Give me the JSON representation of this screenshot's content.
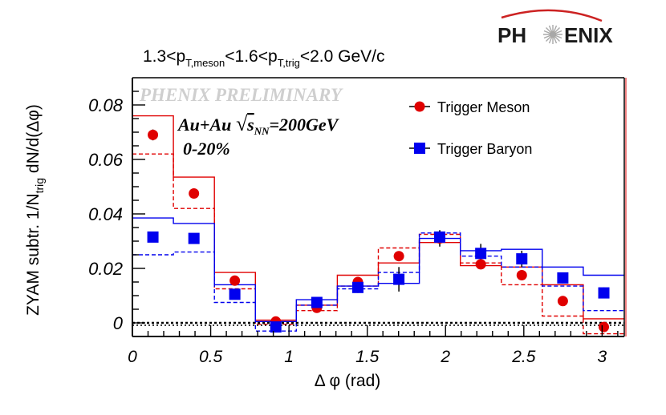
{
  "logo": {
    "text_left": "PH",
    "text_right": "ENIX"
  },
  "chart_data": {
    "type": "scatter",
    "title": "1.3<p_{T,meson}<1.6<p_{T,trig}<2.0 GeV/c",
    "title_parts": [
      "1.3<p",
      "T,meson",
      "<1.6<p",
      "T,trig",
      "<2.0 GeV/c"
    ],
    "xlabel": "Δ φ (rad)",
    "ylabel": "ZYAM subtr. 1/N_{trig} dN/d(Δφ)",
    "ylabel_parts": [
      "ZYAM subtr. 1/N",
      "trig",
      " dN/d(Δφ)"
    ],
    "xlim": [
      0,
      3.1416
    ],
    "ylim": [
      -0.005,
      0.09
    ],
    "xticks": [
      0,
      0.5,
      1,
      1.5,
      2,
      2.5,
      3
    ],
    "xtick_labels": [
      "0",
      "0.5",
      "1",
      "1.5",
      "2",
      "2.5",
      "3"
    ],
    "yticks": [
      0,
      0.02,
      0.04,
      0.06,
      0.08
    ],
    "ytick_labels": [
      "0",
      "0.02",
      "0.04",
      "0.06",
      "0.08"
    ],
    "bin_edges": [
      0,
      0.2618,
      0.5236,
      0.7854,
      1.0472,
      1.309,
      1.5708,
      1.8326,
      2.0944,
      2.3562,
      2.618,
      2.8798,
      3.1416
    ],
    "annotations": {
      "watermark": "PHENIX PRELIMINARY",
      "system_prefix": "Au+Au ",
      "sqrt_symbol": "√",
      "s_label": "s",
      "s_sub": "NN",
      "system_suffix": "=200GeV",
      "centrality": "0-20%"
    },
    "series": [
      {
        "name": "Trigger Meson",
        "color": "#e00000",
        "marker": "circle",
        "x": [
          0.131,
          0.393,
          0.654,
          0.916,
          1.178,
          1.44,
          1.702,
          1.963,
          2.225,
          2.487,
          2.749,
          3.011
        ],
        "y": [
          0.069,
          0.0475,
          0.0155,
          0.0005,
          0.0055,
          0.015,
          0.0245,
          0.031,
          0.0215,
          0.0175,
          0.008,
          -0.0015
        ],
        "yerr": [
          0.002,
          0.0015,
          0.0012,
          0.0012,
          0.0012,
          0.0015,
          0.0015,
          0.003,
          0.0015,
          0.0015,
          0.0012,
          0.001
        ],
        "sys_upper": [
          0.076,
          0.0535,
          0.0185,
          0.001,
          0.0065,
          0.0175,
          0.022,
          0.0295,
          0.021,
          0.0205,
          0.014,
          0.0015
        ],
        "sys_lower": [
          0.062,
          0.042,
          0.0125,
          -0.0005,
          0.0045,
          0.0135,
          0.0275,
          0.0325,
          0.022,
          0.014,
          0.0025,
          -0.004
        ]
      },
      {
        "name": "Trigger Baryon",
        "color": "#0000ee",
        "marker": "square",
        "x": [
          0.131,
          0.393,
          0.654,
          0.916,
          1.178,
          1.44,
          1.702,
          1.963,
          2.225,
          2.487,
          2.749,
          3.011
        ],
        "y": [
          0.0315,
          0.031,
          0.0105,
          -0.0015,
          0.0075,
          0.013,
          0.016,
          0.0315,
          0.0255,
          0.0235,
          0.0165,
          0.011
        ],
        "yerr": [
          0.0015,
          0.0015,
          0.0015,
          0.0012,
          0.002,
          0.002,
          0.0045,
          0.0025,
          0.0035,
          0.003,
          0.002,
          0.002
        ],
        "sys_upper": [
          0.0385,
          0.0365,
          0.014,
          0.0005,
          0.0085,
          0.0135,
          0.0145,
          0.031,
          0.0265,
          0.027,
          0.0205,
          0.0175
        ],
        "sys_lower": [
          0.025,
          0.026,
          0.0075,
          -0.003,
          0.0065,
          0.0125,
          0.0185,
          0.033,
          0.0245,
          0.0205,
          0.0135,
          0.0045
        ]
      }
    ],
    "reference_line": {
      "y": 0,
      "style": "dotted"
    },
    "legend_position": "top-right"
  }
}
